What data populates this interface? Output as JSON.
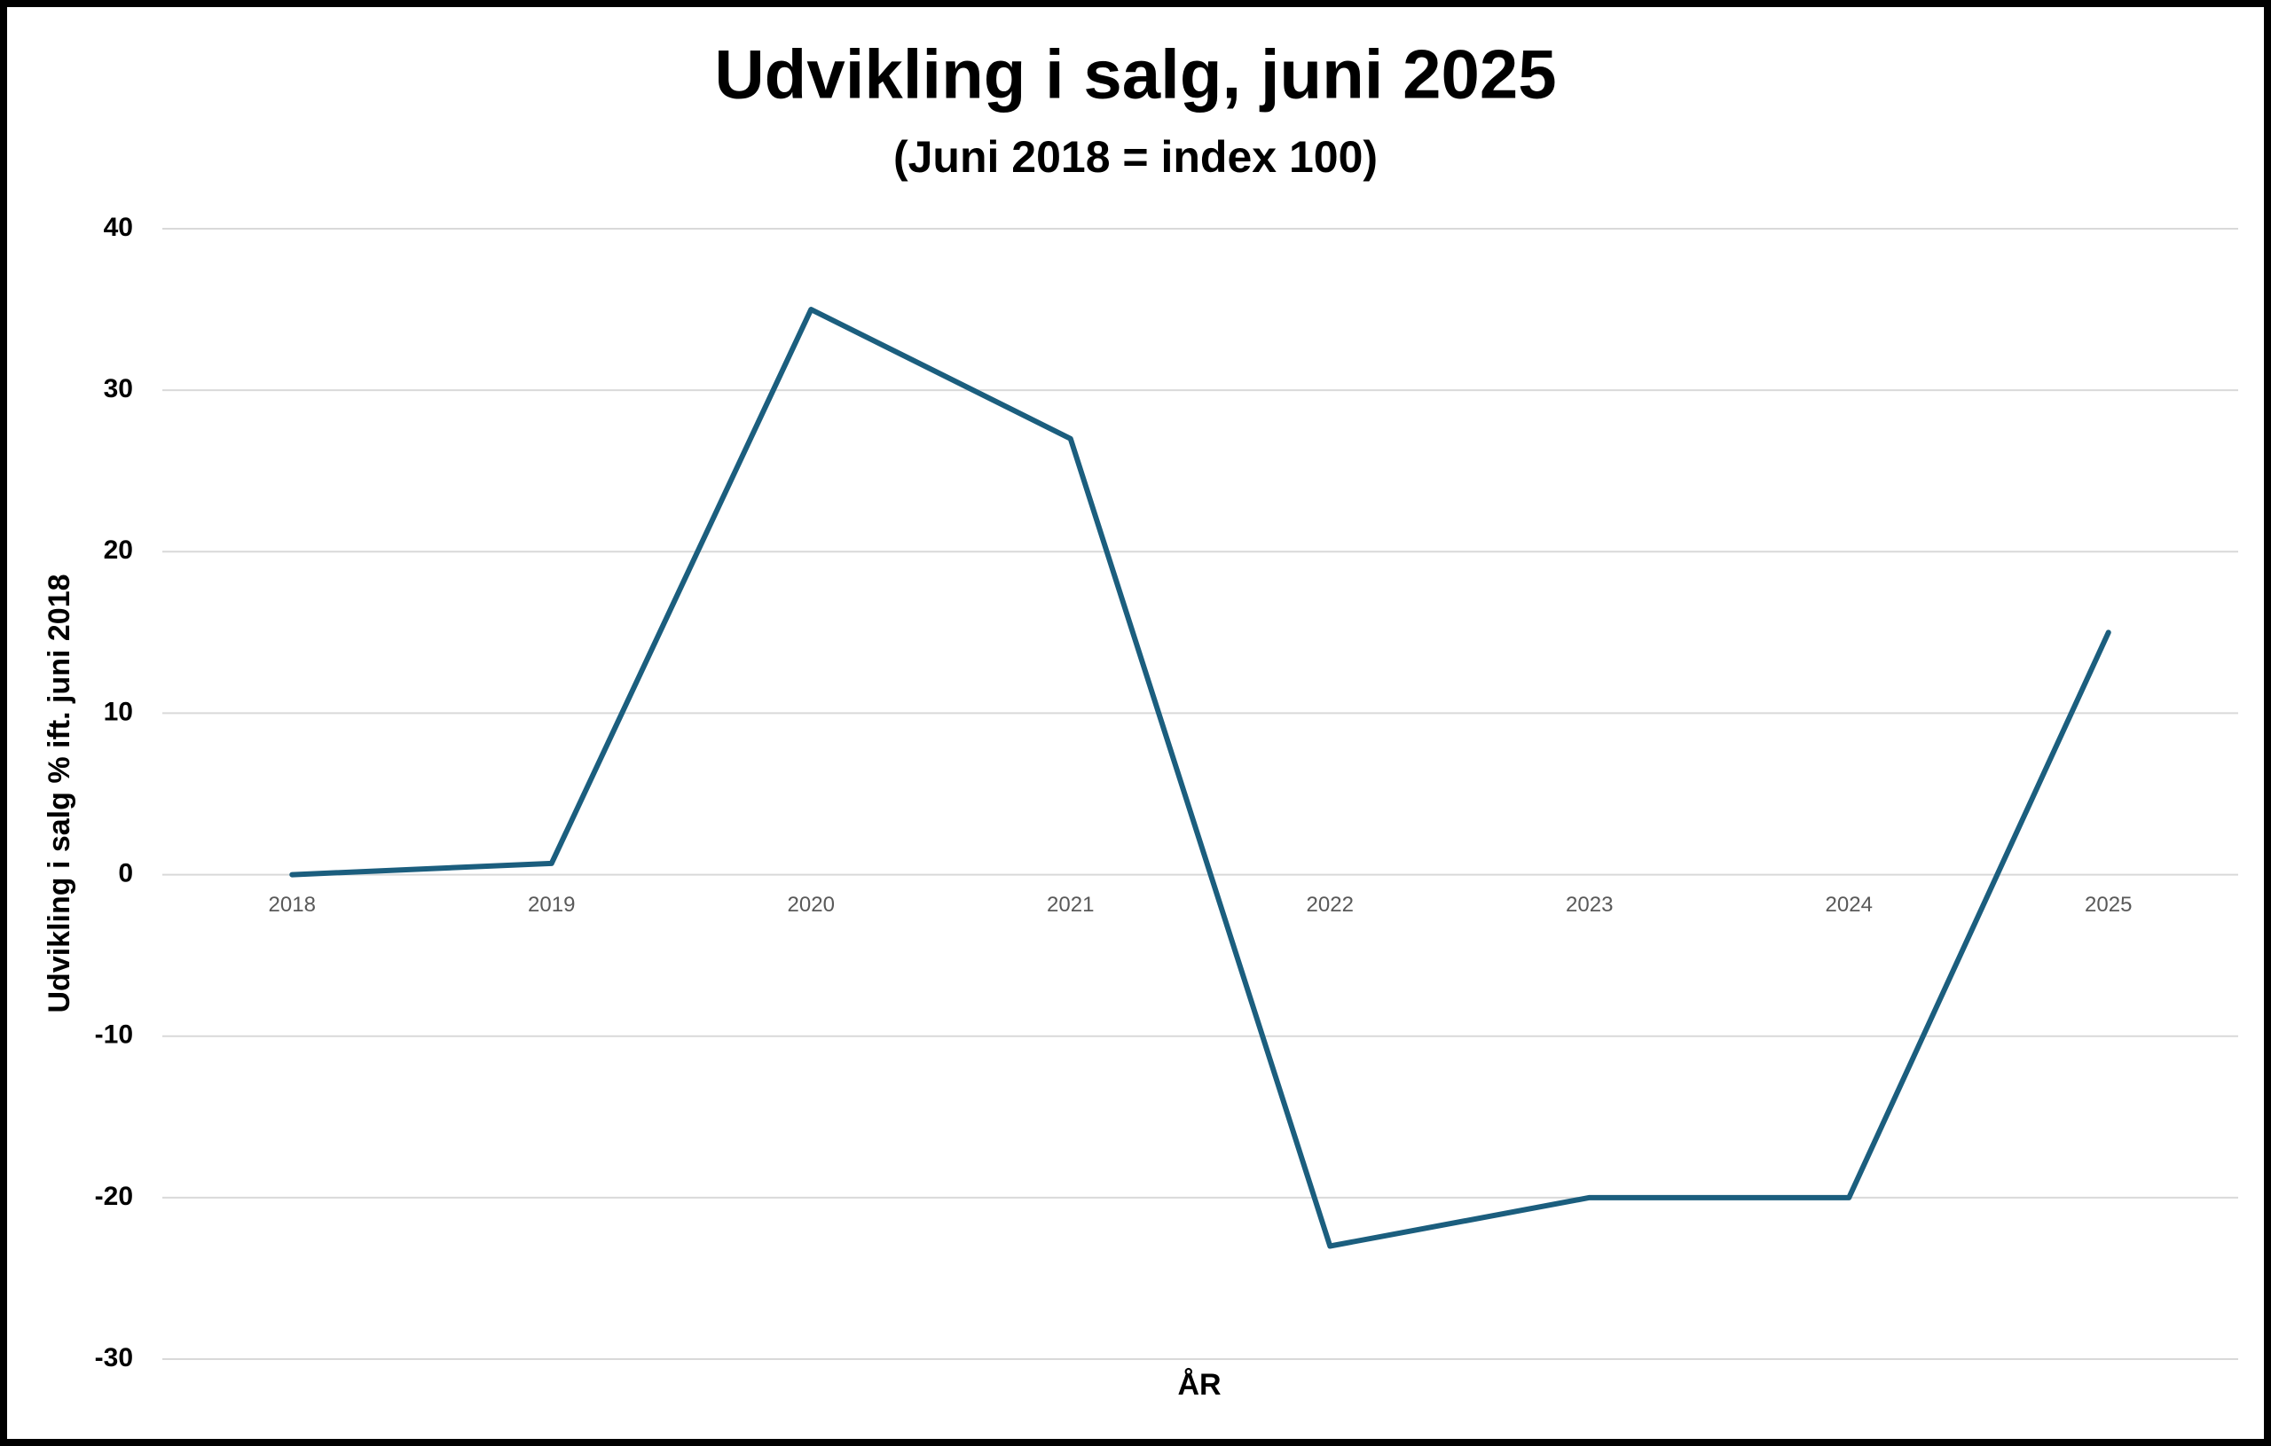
{
  "chart_data": {
    "type": "line",
    "title": "Udvikling i salg, juni 2025",
    "subtitle": "(Juni 2018 = index 100)",
    "x_label": "ÅR",
    "y_label": "Udvikling i salg % ift. juni 2018",
    "categories": [
      "2018",
      "2019",
      "2020",
      "2021",
      "2022",
      "2023",
      "2024",
      "2025"
    ],
    "series": [
      {
        "name": "Udvikling i salg",
        "color": "#1b5e7e",
        "values": [
          0,
          0.7,
          35,
          27,
          -23,
          -20,
          -20,
          15
        ]
      }
    ],
    "ylim": [
      -30,
      40
    ],
    "yticks": [
      -30,
      -20,
      -10,
      0,
      10,
      20,
      30,
      40
    ],
    "grid": true
  }
}
